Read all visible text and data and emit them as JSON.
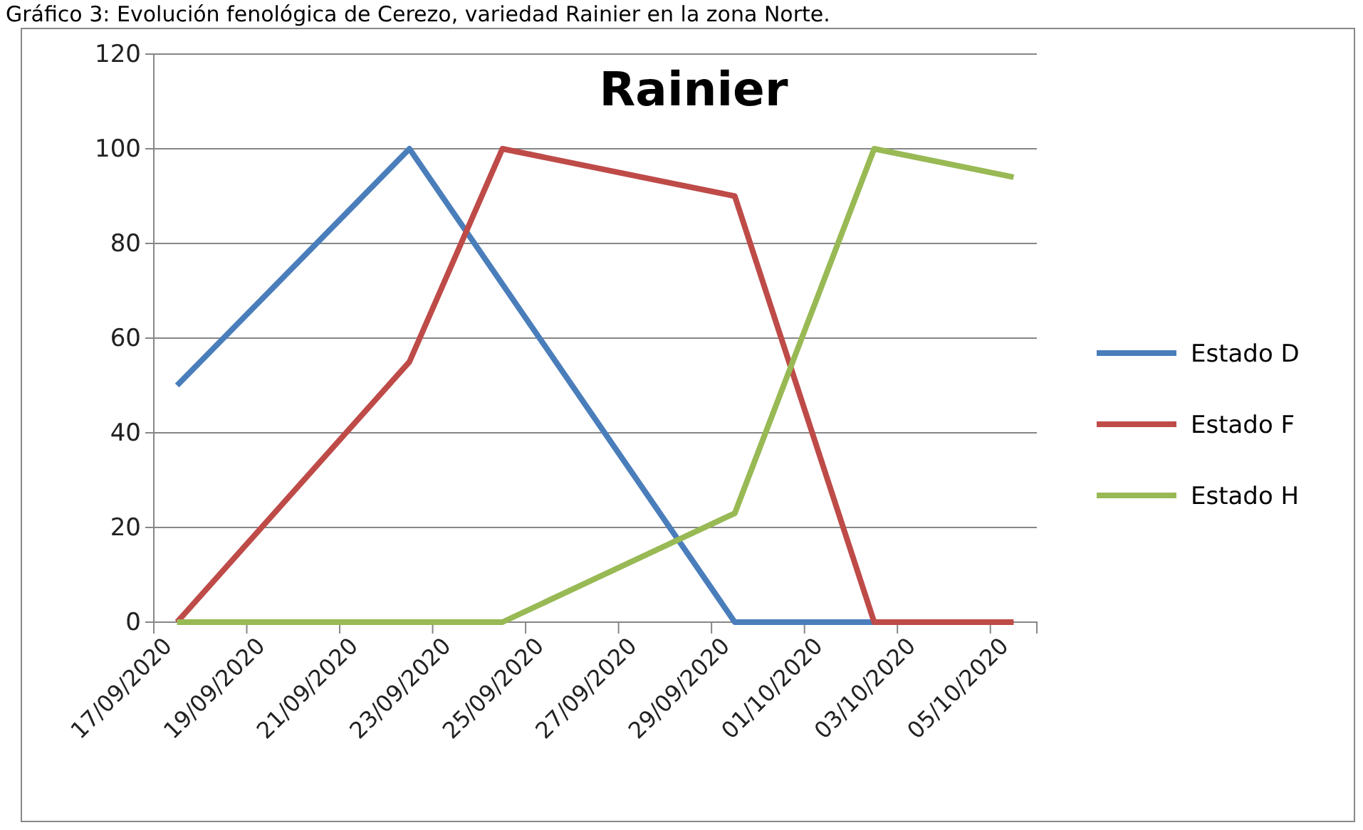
{
  "chart_data": {
    "type": "line",
    "title": "Gráfico 3: Evolución fenológica de Cerezo, variedad Rainier en la zona Norte.",
    "subtitle": "Rainier",
    "xlim": [
      "2020-09-17",
      "2020-10-06"
    ],
    "xticks": [
      {
        "value": "2020-09-17",
        "label": "17/09/2020"
      },
      {
        "value": "2020-09-19",
        "label": "19/09/2020"
      },
      {
        "value": "2020-09-21",
        "label": "21/09/2020"
      },
      {
        "value": "2020-09-23",
        "label": "23/09/2020"
      },
      {
        "value": "2020-09-25",
        "label": "25/09/2020"
      },
      {
        "value": "2020-09-27",
        "label": "27/09/2020"
      },
      {
        "value": "2020-09-29",
        "label": "29/09/2020"
      },
      {
        "value": "2020-10-01",
        "label": "01/10/2020"
      },
      {
        "value": "2020-10-03",
        "label": "03/10/2020"
      },
      {
        "value": "2020-10-05",
        "label": "05/10/2020"
      }
    ],
    "ylim": [
      0,
      120
    ],
    "yticks": [
      0,
      20,
      40,
      60,
      80,
      100,
      120
    ],
    "grid": "y",
    "legend": "right",
    "marker": "none",
    "line_style": "solid",
    "series": [
      {
        "name": "Estado D",
        "color": "#4a7ebb",
        "x": [
          "2020-09-17T12:00",
          "2020-09-22T12:00",
          "2020-09-29T12:00",
          "2020-10-02T12:00"
        ],
        "values": [
          50,
          100,
          0,
          0
        ]
      },
      {
        "name": "Estado F",
        "color": "#be4b48",
        "x": [
          "2020-09-17T12:00",
          "2020-09-22T12:00",
          "2020-09-24T12:00",
          "2020-09-29T12:00",
          "2020-10-02T12:00",
          "2020-10-05T12:00"
        ],
        "values": [
          0,
          55,
          100,
          90,
          0,
          0
        ]
      },
      {
        "name": "Estado H",
        "color": "#98b954",
        "x": [
          "2020-09-17T12:00",
          "2020-09-22T12:00",
          "2020-09-24T12:00",
          "2020-09-29T12:00",
          "2020-10-02T12:00",
          "2020-10-05T12:00"
        ],
        "values": [
          0,
          0,
          0,
          23,
          100,
          94
        ]
      }
    ]
  }
}
